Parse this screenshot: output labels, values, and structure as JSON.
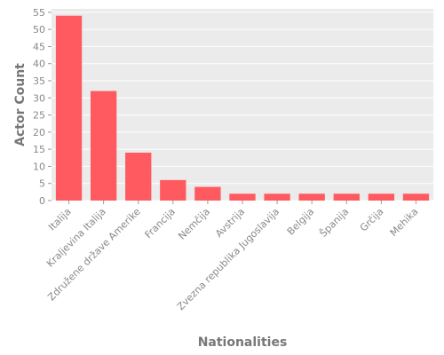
{
  "chart_data": {
    "type": "bar",
    "title": "",
    "xlabel": "Nationalities",
    "ylabel": "Actor Count",
    "categories": [
      "Italija",
      "Kraljevina Italija",
      "Združene države Amerike",
      "Francija",
      "Nemčija",
      "Avstrija",
      "Zvezna republika Jugoslavija",
      "Belgija",
      "Španija",
      "Grčija",
      "Mehika"
    ],
    "values": [
      54,
      32,
      14,
      6,
      4,
      2,
      2,
      2,
      2,
      2,
      2
    ],
    "ylim": [
      0,
      56
    ],
    "yticks": [
      0,
      5,
      10,
      15,
      20,
      25,
      30,
      35,
      40,
      45,
      50,
      55
    ],
    "grid": true,
    "colors": {
      "bar": "#ff5a5f",
      "plot_background": "#ebebeb",
      "grid": "#ffffff"
    }
  }
}
